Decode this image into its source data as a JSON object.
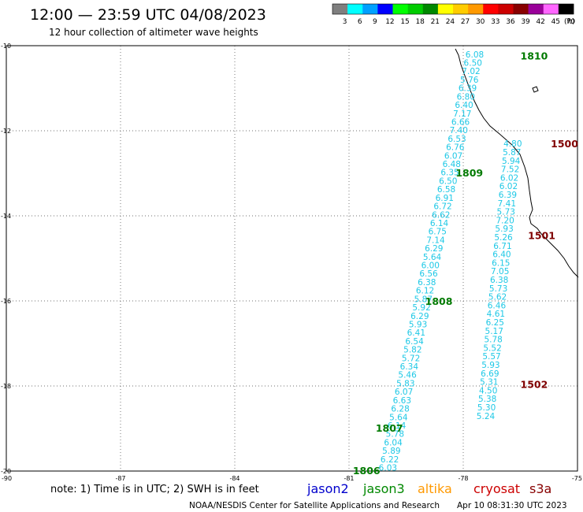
{
  "header": {
    "title": "12:00 — 23:59 UTC 04/08/2023",
    "subtitle": "12 hour collection of altimeter wave heights"
  },
  "colorbar": {
    "unit": "(ft)",
    "entries": [
      {
        "label": "3",
        "color": "#7f7f7f"
      },
      {
        "label": "6",
        "color": "#00ffff"
      },
      {
        "label": "9",
        "color": "#00a0ff"
      },
      {
        "label": "12",
        "color": "#0000ff"
      },
      {
        "label": "15",
        "color": "#00ff00"
      },
      {
        "label": "18",
        "color": "#00cc00"
      },
      {
        "label": "21",
        "color": "#008800"
      },
      {
        "label": "24",
        "color": "#ffff00"
      },
      {
        "label": "27",
        "color": "#ffcc00"
      },
      {
        "label": "30",
        "color": "#ff9900"
      },
      {
        "label": "33",
        "color": "#ff0000"
      },
      {
        "label": "36",
        "color": "#cc0000"
      },
      {
        "label": "39",
        "color": "#880000"
      },
      {
        "label": "42",
        "color": "#990099"
      },
      {
        "label": "45",
        "color": "#ff66ff"
      },
      {
        "label": "70",
        "color": "#000000"
      }
    ]
  },
  "map": {
    "lon_range": [
      -90,
      -75
    ],
    "lat_range": [
      -20,
      -10
    ],
    "x_ticks": [
      "-90",
      "-87",
      "-84",
      "-81",
      "-78",
      "-75"
    ],
    "y_ticks": [
      "-10",
      "-12",
      "-14",
      "-16",
      "-18",
      "-20"
    ],
    "grid": "dotted",
    "value_color": "#1ec8e6",
    "passes": [
      {
        "label": "1810",
        "color": "#007a00",
        "lat_step": 0.1983,
        "lon_step": 0.0465,
        "start_lat": -10.2,
        "start_lon": -77.7,
        "values": [
          "6.08",
          "6.50",
          "7.02",
          "5.76",
          "6.39",
          "6.80",
          "6.40",
          "7.17",
          "6.66",
          "7.40",
          "6.53",
          "6.76",
          "6.07",
          "6.48",
          "6.35",
          "6.50",
          "6.58",
          "6.91",
          "6.72",
          "6.62",
          "6.14",
          "6.75",
          "7.14",
          "6.29",
          "5.64",
          "6.00",
          "6.56",
          "6.38",
          "6.12",
          "5.87",
          "5.92",
          "6.29",
          "5.93",
          "6.41",
          "6.54",
          "5.82",
          "5.72",
          "6.34",
          "5.46",
          "5.83",
          "6.07",
          "6.63",
          "6.28",
          "5.64",
          "6.14",
          "5.78",
          "6.04",
          "5.89",
          "6.22",
          "6.03"
        ]
      },
      {
        "label": "1500",
        "color": "#800000",
        "lat_step": 0.2,
        "lon_step": 0.0222,
        "start_lat": -12.3,
        "start_lon": -76.7,
        "values": [
          "4.80",
          "5.87",
          "5.94",
          "7.52",
          "6.02",
          "6.02",
          "6.39",
          "7.41",
          "5.73",
          "7.20",
          "5.93",
          "5.26",
          "6.71",
          "6.40",
          "6.15",
          "7.05",
          "6.38",
          "5.73",
          "5.62",
          "6.46",
          "4.61",
          "6.25",
          "5.17",
          "5.78",
          "5.52",
          "5.57",
          "5.93",
          "6.69",
          "5.31",
          "4.50",
          "5.38",
          "5.30",
          "5.24"
        ]
      }
    ],
    "pass_labels": [
      {
        "text": "1810",
        "color": "#007a00",
        "lon": -76.5,
        "lat": -10.23
      },
      {
        "text": "1809",
        "color": "#007a00",
        "lon": -78.2,
        "lat": -12.98
      },
      {
        "text": "1808",
        "color": "#007a00",
        "lon": -79.0,
        "lat": -16.0
      },
      {
        "text": "1807",
        "color": "#007a00",
        "lon": -80.3,
        "lat": -18.98
      },
      {
        "text": "1806",
        "color": "#007a00",
        "lon": -80.9,
        "lat": -19.98
      },
      {
        "text": "1500",
        "color": "#800000",
        "lon": -75.7,
        "lat": -12.3
      },
      {
        "text": "1501",
        "color": "#800000",
        "lon": -76.3,
        "lat": -14.45
      },
      {
        "text": "1502",
        "color": "#800000",
        "lon": -76.5,
        "lat": -17.95
      }
    ]
  },
  "note": "note: 1) Time is in UTC; 2) SWH is in feet",
  "satellites": [
    {
      "name": "jason2",
      "color": "#0000cc"
    },
    {
      "name": "jason3",
      "color": "#008800"
    },
    {
      "name": "altika",
      "color": "#ff9900"
    },
    {
      "name": "cryosat",
      "color": "#cc0000"
    },
    {
      "name": "s3a",
      "color": "#880000"
    }
  ],
  "footer": {
    "credit": "NOAA/NESDIS Center for Satellite Applications and Research",
    "timestamp": "Apr 10 08:31:30 UTC 2023"
  }
}
